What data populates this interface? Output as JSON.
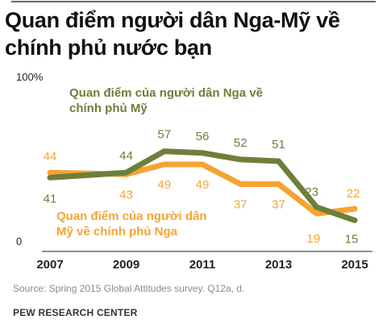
{
  "title": "Quan điểm người dân Nga-Mỹ về chính phủ nước bạn",
  "source": "Source: Spring 2015 Global Attitudes survey. Q12a, d.",
  "organization": "PEW RESEARCH CENTER",
  "chart_data": {
    "type": "line",
    "x": [
      2007,
      2009,
      2010,
      2011,
      2012,
      2013,
      2014,
      2015
    ],
    "x_ticks": [
      "2007",
      "2009",
      "2011",
      "2013",
      "2015"
    ],
    "y_ticks": [
      "100%",
      "0"
    ],
    "ylim": [
      0,
      100
    ],
    "grid": false,
    "series": [
      {
        "name": "Quan điểm của người dân Nga về chính phủ Mỹ",
        "name_lines": [
          "Quan điểm của người dân Nga về",
          "chính phủ Mỹ"
        ],
        "color": "#6d7f3a",
        "values": [
          41,
          44,
          57,
          56,
          52,
          51,
          23,
          15
        ],
        "labels": [
          "41",
          "44",
          "57",
          "56",
          "52",
          "51",
          "23",
          "15"
        ]
      },
      {
        "name": "Quan điểm của người dân Mỹ về chính phủ Nga",
        "name_lines": [
          "Quan điểm của người dân",
          "Mỹ về chính phủ Nga"
        ],
        "color": "#f5a433",
        "values": [
          44,
          43,
          49,
          49,
          37,
          37,
          19,
          22
        ],
        "labels": [
          "44",
          "43",
          "49",
          "49",
          "37",
          "37",
          "19",
          "22"
        ]
      }
    ]
  }
}
